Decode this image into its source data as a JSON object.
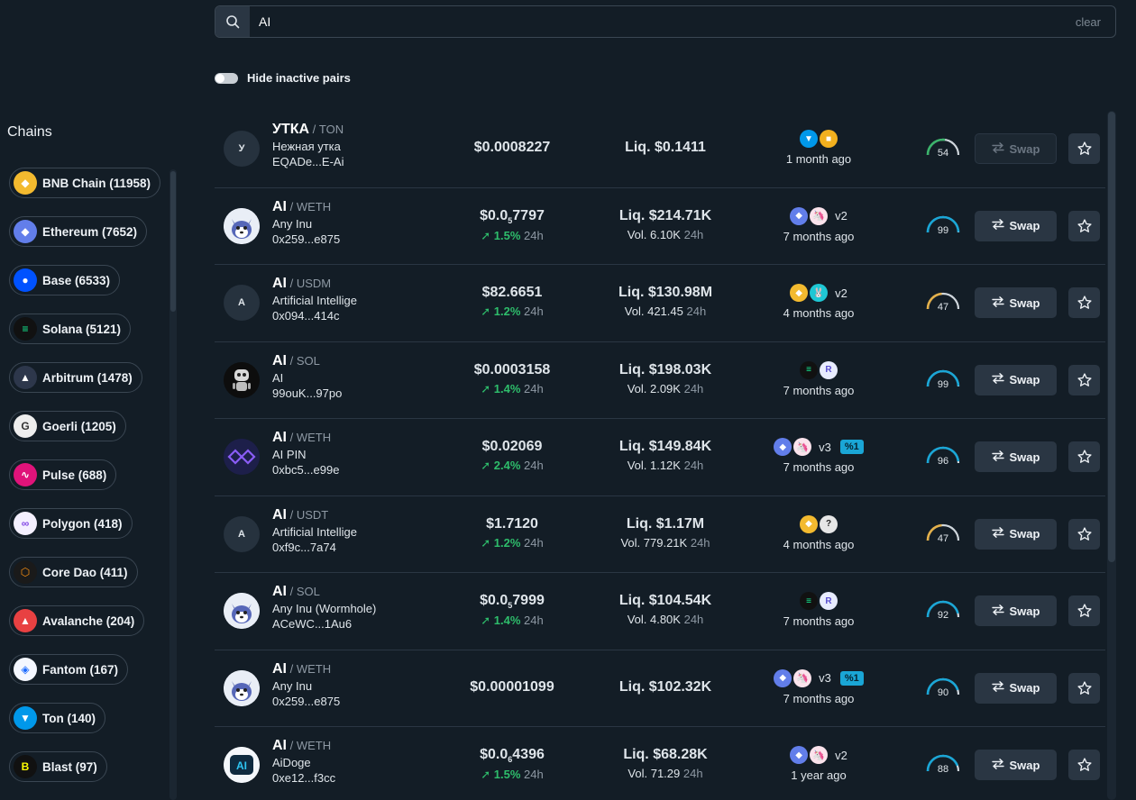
{
  "search": {
    "value": "AI",
    "clear_label": "clear"
  },
  "toggle": {
    "label": "Hide inactive pairs"
  },
  "sidebar": {
    "title": "Chains",
    "chains": [
      {
        "label": "BNB Chain (11958)",
        "icon": "bnb-chain-icon",
        "color": "#f3ba2f",
        "glyph": "◆"
      },
      {
        "label": "Ethereum (7652)",
        "icon": "ethereum-icon",
        "color": "#627eea",
        "glyph": "◆"
      },
      {
        "label": "Base (6533)",
        "icon": "base-icon",
        "color": "#0052ff",
        "glyph": "●"
      },
      {
        "label": "Solana (5121)",
        "icon": "solana-icon",
        "color": "#111111",
        "glyph": "≡"
      },
      {
        "label": "Arbitrum (1478)",
        "icon": "arbitrum-icon",
        "color": "#2d374b",
        "glyph": "▲"
      },
      {
        "label": "Goerli (1205)",
        "icon": "goerli-icon",
        "color": "#eeeeee",
        "glyph": "G"
      },
      {
        "label": "Pulse (688)",
        "icon": "pulse-icon",
        "color": "#e0137a",
        "glyph": "∿"
      },
      {
        "label": "Polygon (418)",
        "icon": "polygon-icon",
        "color": "#f4f0ff",
        "glyph": "∞"
      },
      {
        "label": "Core Dao (411)",
        "icon": "core-dao-icon",
        "color": "#1a1a1a",
        "glyph": "⬡"
      },
      {
        "label": "Avalanche (204)",
        "icon": "avalanche-icon",
        "color": "#e84142",
        "glyph": "▲"
      },
      {
        "label": "Fantom (167)",
        "icon": "fantom-icon",
        "color": "#f4f7ff",
        "glyph": "◈"
      },
      {
        "label": "Ton (140)",
        "icon": "ton-icon",
        "color": "#0098ea",
        "glyph": "▼"
      },
      {
        "label": "Blast (97)",
        "icon": "blast-icon",
        "color": "#111111",
        "glyph": "B"
      }
    ]
  },
  "pairs": [
    {
      "avatar_text": "У",
      "avatar": "letter",
      "symbol": "УТКА",
      "quote": "TON",
      "name": "Нежная утка",
      "address": "EQADe...E-Ai",
      "price_main": "$0.0008227",
      "price_sub": "",
      "price_tail": "",
      "change": "",
      "change_period": "",
      "liquidity": "Liq. $0.1411",
      "volume": "",
      "volume_period": "",
      "dex_icons": [
        {
          "name": "ton-icon",
          "color": "#0098ea",
          "glyph": "▼"
        },
        {
          "name": "dex-cube-icon",
          "color": "#f2b01e",
          "glyph": "■"
        }
      ],
      "version": "",
      "fee": "",
      "age": "1 month ago",
      "score": "54",
      "score_frac": 0.54,
      "score_color": "#3bb36b",
      "swap_label": "Swap",
      "swap_disabled": true
    },
    {
      "avatar_text": "",
      "avatar": "husky",
      "symbol": "AI",
      "quote": "WETH",
      "name": "Any Inu",
      "address": "0x259...e875",
      "price_main": "$0.0",
      "price_sub": "5",
      "price_tail": "7797",
      "change": "1.5%",
      "change_period": "24h",
      "liquidity": "Liq. $214.71K",
      "volume": "Vol. 6.10K",
      "volume_period": "24h",
      "dex_icons": [
        {
          "name": "ethereum-icon",
          "color": "#627eea",
          "glyph": "◆"
        },
        {
          "name": "uniswap-icon",
          "color": "#fbe3ec",
          "glyph": "🦄"
        }
      ],
      "version": "v2",
      "fee": "",
      "age": "7 months ago",
      "score": "99",
      "score_frac": 0.99,
      "score_color": "#1aa6d6",
      "swap_label": "Swap",
      "swap_disabled": false
    },
    {
      "avatar_text": "A",
      "avatar": "letter",
      "symbol": "AI",
      "quote": "USDM",
      "name": "Artificial Intellige",
      "address": "0x094...414c",
      "price_main": "$82.6651",
      "price_sub": "",
      "price_tail": "",
      "change": "1.2%",
      "change_period": "24h",
      "liquidity": "Liq. $130.98M",
      "volume": "Vol. 421.45",
      "volume_period": "24h",
      "dex_icons": [
        {
          "name": "bnb-chain-icon",
          "color": "#f3ba2f",
          "glyph": "◆"
        },
        {
          "name": "pancakeswap-icon",
          "color": "#1fc7d4",
          "glyph": "🐰"
        }
      ],
      "version": "v2",
      "fee": "",
      "age": "4 months ago",
      "score": "47",
      "score_frac": 0.47,
      "score_color": "#e3b04b",
      "swap_label": "Swap",
      "swap_disabled": false
    },
    {
      "avatar_text": "",
      "avatar": "robot",
      "symbol": "AI",
      "quote": "SOL",
      "name": "AI",
      "address": "99ouK...97po",
      "price_main": "$0.0003158",
      "price_sub": "",
      "price_tail": "",
      "change": "1.4%",
      "change_period": "24h",
      "liquidity": "Liq. $198.03K",
      "volume": "Vol. 2.09K",
      "volume_period": "24h",
      "dex_icons": [
        {
          "name": "solana-icon",
          "color": "#111111",
          "glyph": "≡"
        },
        {
          "name": "raydium-icon",
          "color": "#e8ecff",
          "glyph": "R"
        }
      ],
      "version": "",
      "fee": "",
      "age": "7 months ago",
      "score": "99",
      "score_frac": 0.99,
      "score_color": "#1aa6d6",
      "swap_label": "Swap",
      "swap_disabled": false
    },
    {
      "avatar_text": "",
      "avatar": "pin",
      "symbol": "AI",
      "quote": "WETH",
      "name": "AI PIN",
      "address": "0xbc5...e99e",
      "price_main": "$0.02069",
      "price_sub": "",
      "price_tail": "",
      "change": "2.4%",
      "change_period": "24h",
      "liquidity": "Liq. $149.84K",
      "volume": "Vol. 1.12K",
      "volume_period": "24h",
      "dex_icons": [
        {
          "name": "ethereum-icon",
          "color": "#627eea",
          "glyph": "◆"
        },
        {
          "name": "uniswap-icon",
          "color": "#fbe3ec",
          "glyph": "🦄"
        }
      ],
      "version": "v3",
      "fee": "%1",
      "age": "7 months ago",
      "score": "96",
      "score_frac": 0.96,
      "score_color": "#1aa6d6",
      "swap_label": "Swap",
      "swap_disabled": false
    },
    {
      "avatar_text": "A",
      "avatar": "letter",
      "symbol": "AI",
      "quote": "USDT",
      "name": "Artificial Intellige",
      "address": "0xf9c...7a74",
      "price_main": "$1.7120",
      "price_sub": "",
      "price_tail": "",
      "change": "1.2%",
      "change_period": "24h",
      "liquidity": "Liq. $1.17M",
      "volume": "Vol. 779.21K",
      "volume_period": "24h",
      "dex_icons": [
        {
          "name": "bnb-chain-icon",
          "color": "#f3ba2f",
          "glyph": "◆"
        },
        {
          "name": "unknown-dex-icon",
          "color": "#e6e6e6",
          "glyph": "?"
        }
      ],
      "version": "",
      "fee": "",
      "age": "4 months ago",
      "score": "47",
      "score_frac": 0.47,
      "score_color": "#e3b04b",
      "swap_label": "Swap",
      "swap_disabled": false
    },
    {
      "avatar_text": "",
      "avatar": "husky",
      "symbol": "AI",
      "quote": "SOL",
      "name": "Any Inu (Wormhole)",
      "address": "ACeWC...1Au6",
      "price_main": "$0.0",
      "price_sub": "5",
      "price_tail": "7999",
      "change": "1.4%",
      "change_period": "24h",
      "liquidity": "Liq. $104.54K",
      "volume": "Vol. 4.80K",
      "volume_period": "24h",
      "dex_icons": [
        {
          "name": "solana-icon",
          "color": "#111111",
          "glyph": "≡"
        },
        {
          "name": "raydium-icon",
          "color": "#e8ecff",
          "glyph": "R"
        }
      ],
      "version": "",
      "fee": "",
      "age": "7 months ago",
      "score": "92",
      "score_frac": 0.92,
      "score_color": "#1aa6d6",
      "swap_label": "Swap",
      "swap_disabled": false
    },
    {
      "avatar_text": "",
      "avatar": "husky",
      "symbol": "AI",
      "quote": "WETH",
      "name": "Any Inu",
      "address": "0x259...e875",
      "price_main": "$0.00001099",
      "price_sub": "",
      "price_tail": "",
      "change": "",
      "change_period": "",
      "liquidity": "Liq. $102.32K",
      "volume": "",
      "volume_period": "",
      "dex_icons": [
        {
          "name": "ethereum-icon",
          "color": "#627eea",
          "glyph": "◆"
        },
        {
          "name": "uniswap-icon",
          "color": "#fbe3ec",
          "glyph": "🦄"
        }
      ],
      "version": "v3",
      "fee": "%1",
      "age": "7 months ago",
      "score": "90",
      "score_frac": 0.9,
      "score_color": "#1aa6d6",
      "swap_label": "Swap",
      "swap_disabled": false
    },
    {
      "avatar_text": "",
      "avatar": "aidoge",
      "symbol": "AI",
      "quote": "WETH",
      "name": "AiDoge",
      "address": "0xe12...f3cc",
      "price_main": "$0.0",
      "price_sub": "6",
      "price_tail": "4396",
      "change": "1.5%",
      "change_period": "24h",
      "liquidity": "Liq. $68.28K",
      "volume": "Vol. 71.29",
      "volume_period": "24h",
      "dex_icons": [
        {
          "name": "ethereum-icon",
          "color": "#627eea",
          "glyph": "◆"
        },
        {
          "name": "uniswap-icon",
          "color": "#fbe3ec",
          "glyph": "🦄"
        }
      ],
      "version": "v2",
      "fee": "",
      "age": "1 year ago",
      "score": "88",
      "score_frac": 0.88,
      "score_color": "#1aa6d6",
      "swap_label": "Swap",
      "swap_disabled": false
    }
  ]
}
